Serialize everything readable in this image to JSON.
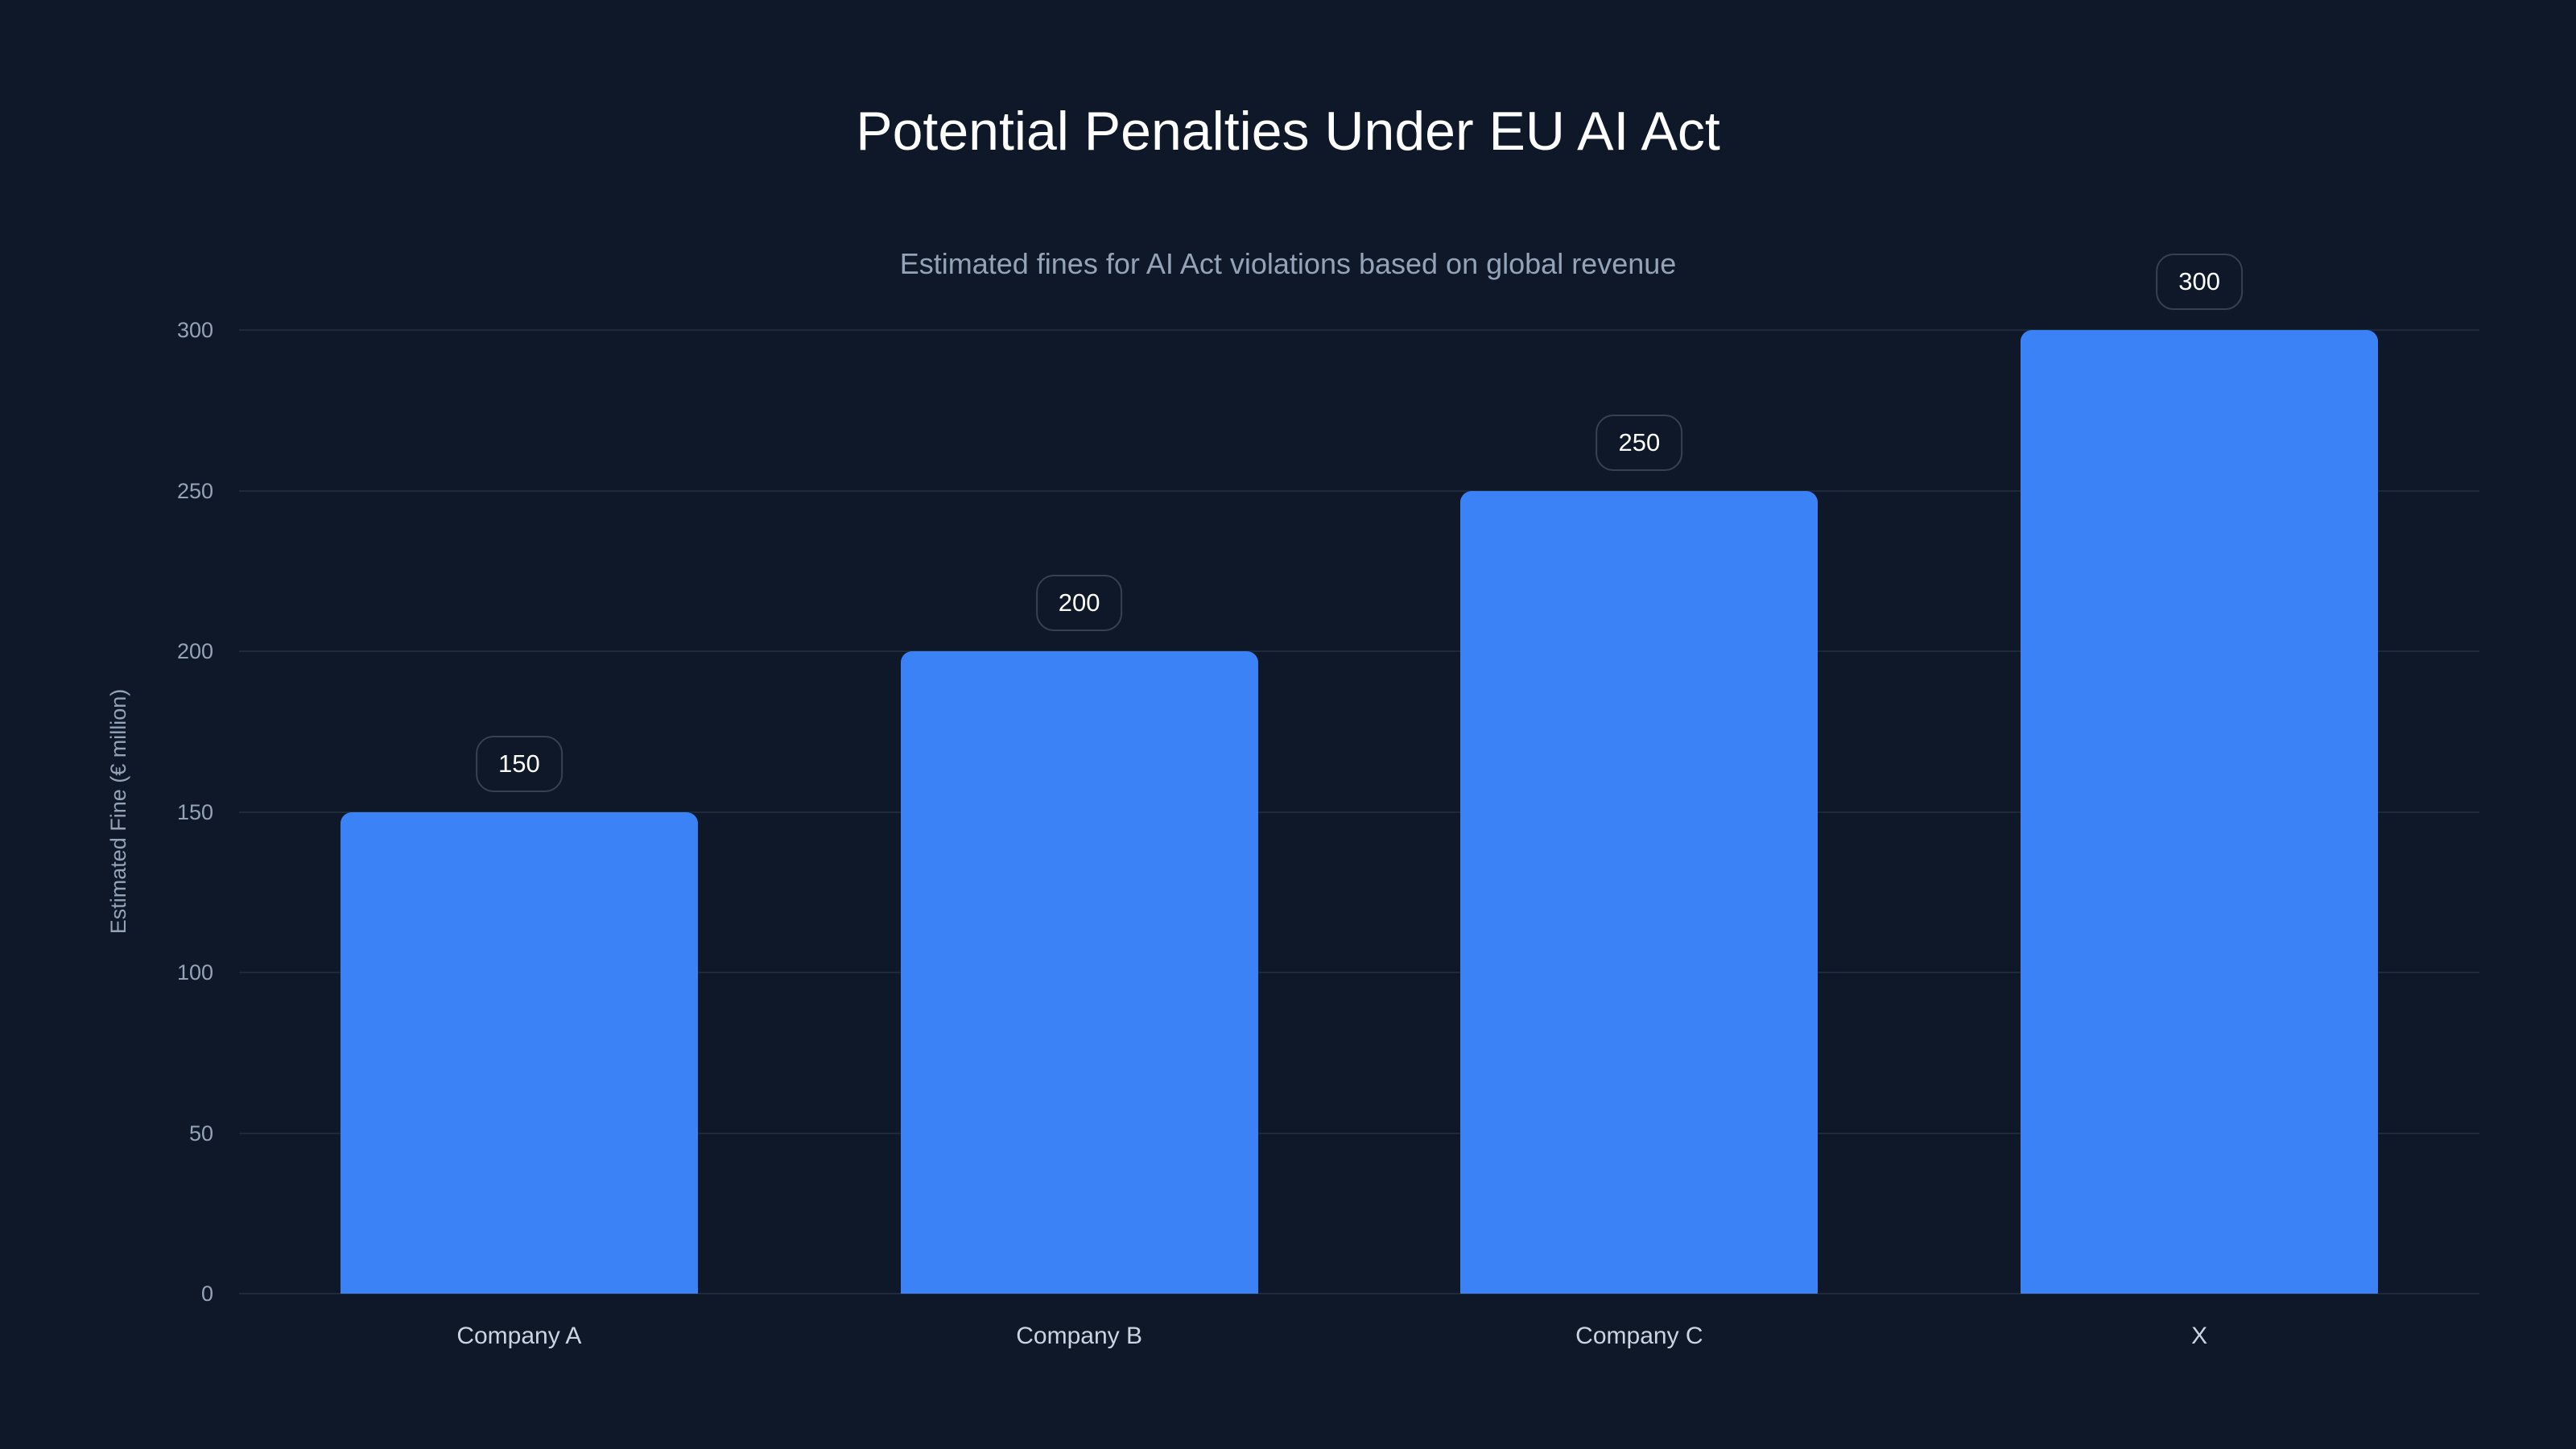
{
  "chart_data": {
    "type": "bar",
    "title": "Potential Penalties Under EU AI Act",
    "subtitle": "Estimated fines for AI Act violations based on global revenue",
    "xlabel": "",
    "ylabel": "Estimated Fine (€ million)",
    "categories": [
      "Company A",
      "Company B",
      "Company C",
      "X"
    ],
    "values": [
      150,
      200,
      250,
      300
    ],
    "data_labels": [
      "150",
      "200",
      "250",
      "300"
    ],
    "ylim": [
      0,
      300
    ],
    "yticks": [
      0,
      50,
      100,
      150,
      200,
      250,
      300
    ],
    "ytick_labels": [
      "0",
      "50",
      "100",
      "150",
      "200",
      "250",
      "300"
    ],
    "grid": true,
    "legend": null,
    "colors": {
      "background": "#0f1829",
      "bar": "#3b82f6",
      "gridline": "#1e293b",
      "title": "#ffffff",
      "subtitle": "#94a3b8",
      "axis_text": "#94a3b8",
      "category_text": "#cbd5e1",
      "badge_border": "#374151"
    }
  }
}
